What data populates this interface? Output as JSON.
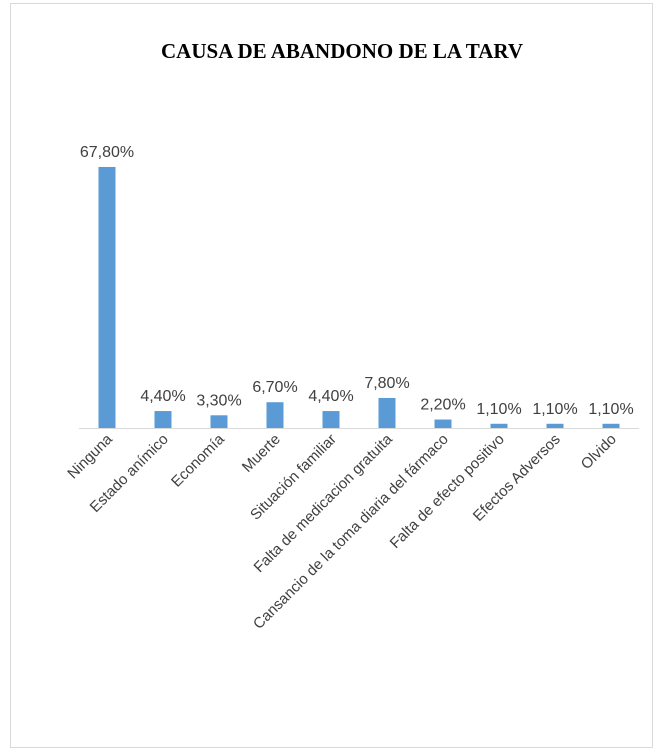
{
  "chart_data": {
    "type": "bar",
    "title": "CAUSA DE ABANDONO DE LA TARV",
    "xlabel": "",
    "ylabel": "",
    "categories": [
      "Ninguna",
      "Estado anímico",
      "Economía",
      "Muerte",
      "Situación familiar",
      "Falta de medicacion gratuita",
      "Cansancio de la toma diaria del fármaco",
      "Falta de efecto positivo",
      "Efectos Adversos",
      "Olvido"
    ],
    "values": [
      67.8,
      4.4,
      3.3,
      6.7,
      4.4,
      7.8,
      2.2,
      1.1,
      1.1,
      1.1
    ],
    "data_labels": [
      "67,80%",
      "4,40%",
      "3,30%",
      "6,70%",
      "4,40%",
      "7,80%",
      "2,20%",
      "1,10%",
      "1,10%",
      "1,10%"
    ],
    "ylim": [
      0,
      100
    ],
    "grid": false,
    "legend": "none",
    "bar_color": "#5b9bd5",
    "axis_color": "#d9d9d9"
  }
}
